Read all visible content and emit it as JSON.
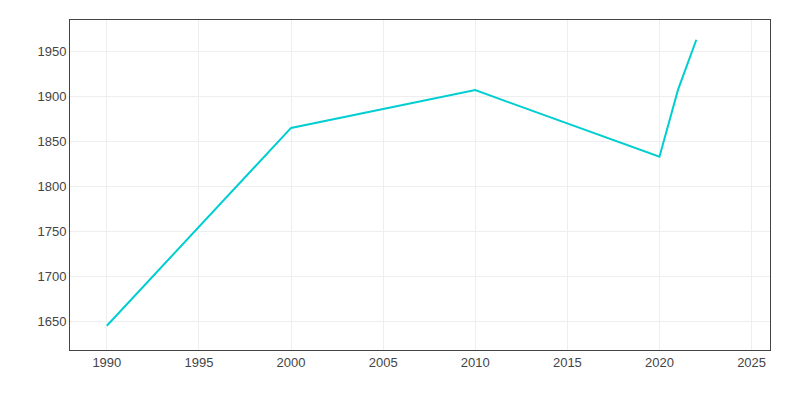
{
  "chart_data": {
    "type": "line",
    "x": [
      1990,
      2000,
      2010,
      2020,
      2021,
      2022
    ],
    "values": [
      1645,
      1865,
      1907,
      1833,
      1907,
      1963
    ],
    "color": "#00CED1",
    "xlim": [
      1988,
      2026
    ],
    "ylim": [
      1618,
      1985
    ],
    "xticks": [
      1990,
      1995,
      2000,
      2005,
      2010,
      2015,
      2020,
      2025
    ],
    "yticks": [
      1650,
      1700,
      1750,
      1800,
      1850,
      1900,
      1950
    ],
    "grid": true
  }
}
